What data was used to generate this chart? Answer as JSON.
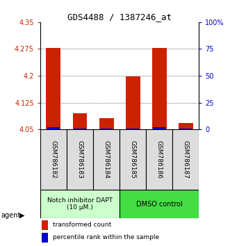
{
  "title": "GDS4488 / 1387246_at",
  "samples": [
    "GSM786182",
    "GSM786183",
    "GSM786184",
    "GSM786185",
    "GSM786186",
    "GSM786187"
  ],
  "red_values": [
    4.278,
    4.095,
    4.082,
    4.198,
    4.278,
    4.068
  ],
  "blue_values": [
    4.056,
    4.053,
    4.052,
    4.053,
    4.056,
    4.052
  ],
  "ylim_left": [
    4.05,
    4.35
  ],
  "ylim_right": [
    0,
    100
  ],
  "yticks_left": [
    4.05,
    4.125,
    4.2,
    4.275,
    4.35
  ],
  "yticks_right": [
    0,
    25,
    50,
    75,
    100
  ],
  "ytick_labels_left": [
    "4.05",
    "4.125",
    "4.2",
    "4.275",
    "4.35"
  ],
  "ytick_labels_right": [
    "0",
    "25",
    "50",
    "75",
    "100%"
  ],
  "group1_label": "Notch inhibitor DAPT\n(10 μM.)",
  "group2_label": "DMSO control",
  "group1_indices": [
    0,
    1,
    2
  ],
  "group2_indices": [
    3,
    4,
    5
  ],
  "group1_color": "#ccffcc",
  "group2_color": "#44dd44",
  "agent_label": "agent",
  "legend1_label": "transformed count",
  "legend2_label": "percentile rank within the sample",
  "red_color": "#cc2200",
  "blue_color": "#0000cc",
  "bar_width": 0.55,
  "base_value": 4.05,
  "label_bg": "#dddddd"
}
